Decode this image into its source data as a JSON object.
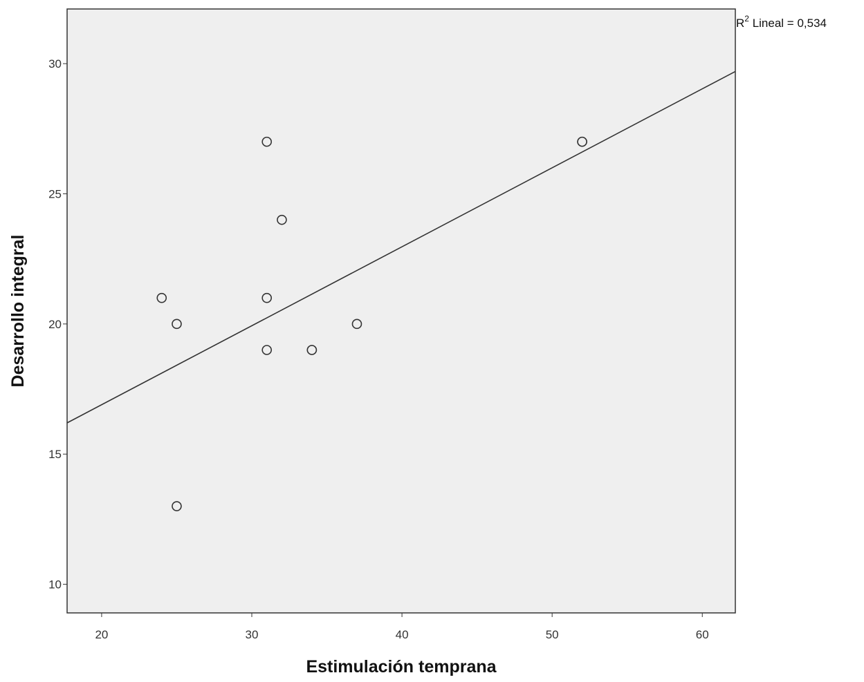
{
  "chart_data": {
    "type": "scatter",
    "xlabel": "Estimulación temprana",
    "ylabel": "Desarrollo integral",
    "xlim": [
      17.7,
      62.2
    ],
    "ylim": [
      8.9,
      32.1
    ],
    "x_ticks": [
      20,
      30,
      40,
      50,
      60
    ],
    "y_ticks": [
      10,
      15,
      20,
      25,
      30
    ],
    "grid": false,
    "points": [
      {
        "x": 24,
        "y": 21
      },
      {
        "x": 25,
        "y": 20
      },
      {
        "x": 25,
        "y": 13
      },
      {
        "x": 31,
        "y": 27
      },
      {
        "x": 31,
        "y": 21
      },
      {
        "x": 31,
        "y": 19
      },
      {
        "x": 32,
        "y": 24
      },
      {
        "x": 34,
        "y": 19
      },
      {
        "x": 34,
        "y": 19
      },
      {
        "x": 37,
        "y": 20
      },
      {
        "x": 52,
        "y": 27
      },
      {
        "x": 52,
        "y": 27
      }
    ],
    "fit_line": {
      "type": "linear",
      "points": [
        {
          "x": 17.7,
          "y": 16.2
        },
        {
          "x": 62.2,
          "y": 29.7
        }
      ],
      "label_prefix": "R",
      "label_sup": "2",
      "label_suffix": " Lineal = 0,534"
    },
    "colors": {
      "plot_background": "#efefef",
      "frame": "#333333",
      "marker_stroke": "#333333",
      "marker_fill": "#efefef",
      "fit_line": "#333333"
    }
  }
}
